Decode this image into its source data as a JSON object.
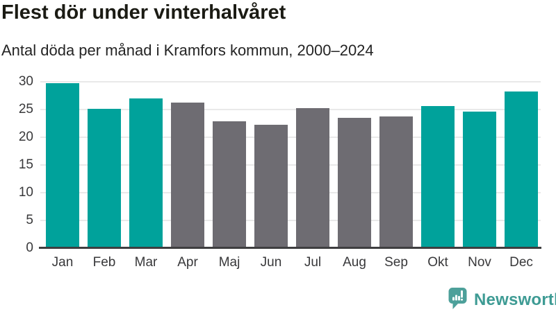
{
  "header": {
    "title": "Flest dör under vinterhalvåret",
    "subtitle": "Antal döda per månad i Kramfors kommun, 2000–2024"
  },
  "chart_data": {
    "type": "bar",
    "title": "Flest dör under vinterhalvåret",
    "subtitle": "Antal döda per månad i Kramfors kommun, 2000–2024",
    "categories": [
      "Jan",
      "Feb",
      "Mar",
      "Apr",
      "Maj",
      "Jun",
      "Jul",
      "Aug",
      "Sep",
      "Okt",
      "Nov",
      "Dec"
    ],
    "values": [
      29.7,
      25.1,
      27.0,
      26.3,
      22.9,
      22.2,
      25.3,
      23.5,
      23.8,
      25.6,
      24.6,
      28.2
    ],
    "highlight_categories": [
      "Jan",
      "Feb",
      "Mar",
      "Okt",
      "Nov",
      "Dec"
    ],
    "colors": {
      "highlight": "#00a29b",
      "base": "#6e6c72",
      "gridline": "#e9e9e9",
      "axis": "#3e3e40"
    },
    "xlabel": "",
    "ylabel": "",
    "ylim": [
      0,
      30
    ],
    "yticks": [
      0,
      5,
      10,
      15,
      20,
      25,
      30
    ],
    "grid": true,
    "legend": false
  },
  "footer": {
    "logo_text": "Newsworthy",
    "logo_color": "#3e9b94",
    "logo_icon": "newsworthy-speech-bubble-bar-chart-icon"
  }
}
